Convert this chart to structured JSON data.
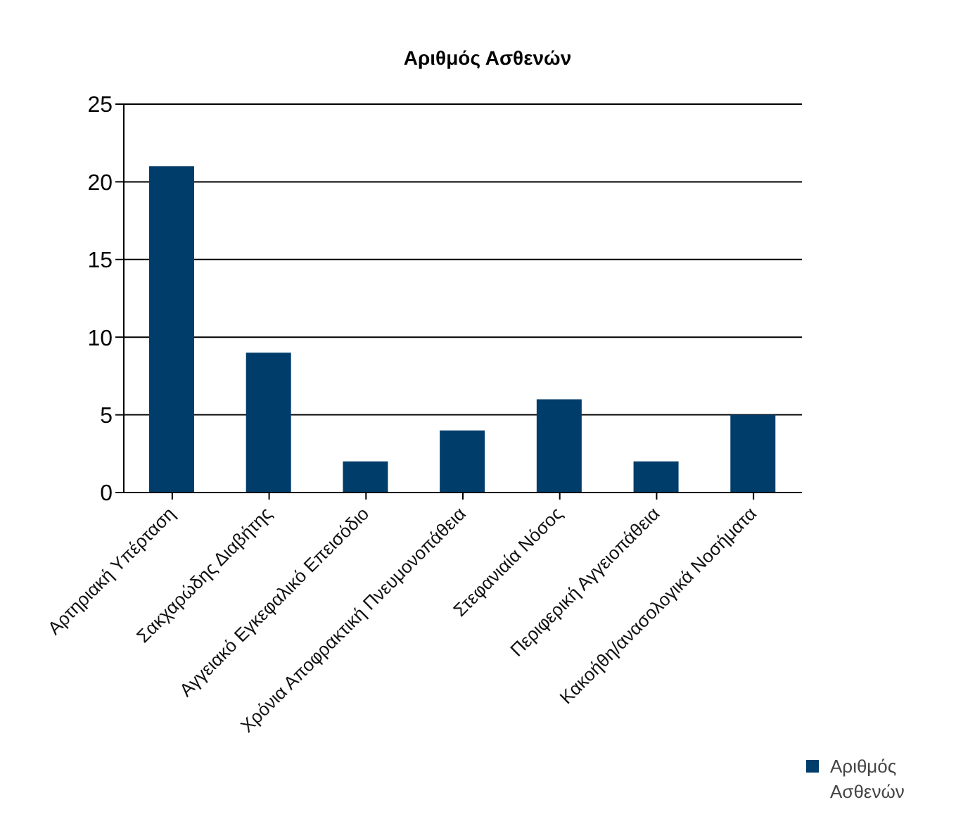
{
  "chart_data": {
    "type": "bar",
    "title": "Αριθμός Ασθενών",
    "categories": [
      "Αρτηριακή Υπέρταση",
      "Σακχαρώδης Διαβήτης",
      "Αγγειακό Εγκεφαλικό Επεισόδιο",
      "Χρόνια Αποφρακτική Πνευμονοπάθεια",
      "Στεφανιαία Νόσος",
      "Περιφερική Αγγειοπάθεια",
      "Κακοήθη/ανασολογικά Νοσήματα"
    ],
    "series": [
      {
        "name": "Αριθμός Ασθενών",
        "color": "#003d6b",
        "values": [
          21,
          9,
          2,
          4,
          6,
          2,
          5
        ]
      }
    ],
    "ylim": [
      0,
      25
    ],
    "yticks": [
      0,
      5,
      10,
      15,
      20,
      25
    ],
    "grid": "y",
    "legend": "bottom right"
  }
}
